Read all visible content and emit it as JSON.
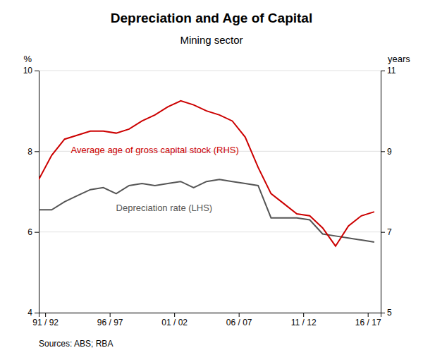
{
  "chart_data": {
    "type": "line",
    "title": "Depreciation and Age of Capital",
    "subtitle": "Mining sector",
    "source": "Sources: ABS; RBA",
    "ylabel": "%",
    "y2label": "years",
    "x": [
      1991,
      1992,
      1993,
      1994,
      1995,
      1996,
      1997,
      1998,
      1999,
      2000,
      2001,
      2002,
      2003,
      2004,
      2005,
      2006,
      2007,
      2008,
      2009,
      2010,
      2011,
      2012,
      2013,
      2014,
      2015,
      2016,
      2017
    ],
    "xlim": [
      1991,
      2017.5
    ],
    "xticks": [
      {
        "value": 1991.5,
        "label": "91 / 92"
      },
      {
        "value": 1996.5,
        "label": "96 / 97"
      },
      {
        "value": 2001.5,
        "label": "01 / 02"
      },
      {
        "value": 2006.5,
        "label": "06 / 07"
      },
      {
        "value": 2011.5,
        "label": "11 / 12"
      },
      {
        "value": 2016.5,
        "label": "16 / 17"
      }
    ],
    "ylim": [
      4,
      10
    ],
    "yticks": [
      4,
      6,
      8,
      10
    ],
    "y2lim": [
      5,
      11
    ],
    "y2ticks": [
      5,
      7,
      9,
      11
    ],
    "grid": true,
    "series": [
      {
        "name": "Depreciation rate (LHS)",
        "color": "#555555",
        "values": [
          6.55,
          6.55,
          6.75,
          6.9,
          7.05,
          7.1,
          6.95,
          7.15,
          7.2,
          7.15,
          7.2,
          7.25,
          7.1,
          7.25,
          7.3,
          7.25,
          7.2,
          7.15,
          6.35,
          6.35,
          6.35,
          6.3,
          5.95,
          5.9,
          5.85,
          5.8,
          5.75
        ]
      },
      {
        "name": "Average age of gross capital stock (RHS)",
        "color": "#cc0000",
        "axis": "y2",
        "values": [
          8.3,
          8.9,
          9.3,
          9.4,
          9.5,
          9.5,
          9.45,
          9.55,
          9.75,
          9.9,
          10.1,
          10.25,
          10.15,
          10.0,
          9.9,
          9.75,
          9.35,
          8.6,
          7.95,
          7.7,
          7.45,
          7.4,
          7.1,
          6.65,
          7.15,
          7.4,
          7.5
        ]
      }
    ]
  }
}
